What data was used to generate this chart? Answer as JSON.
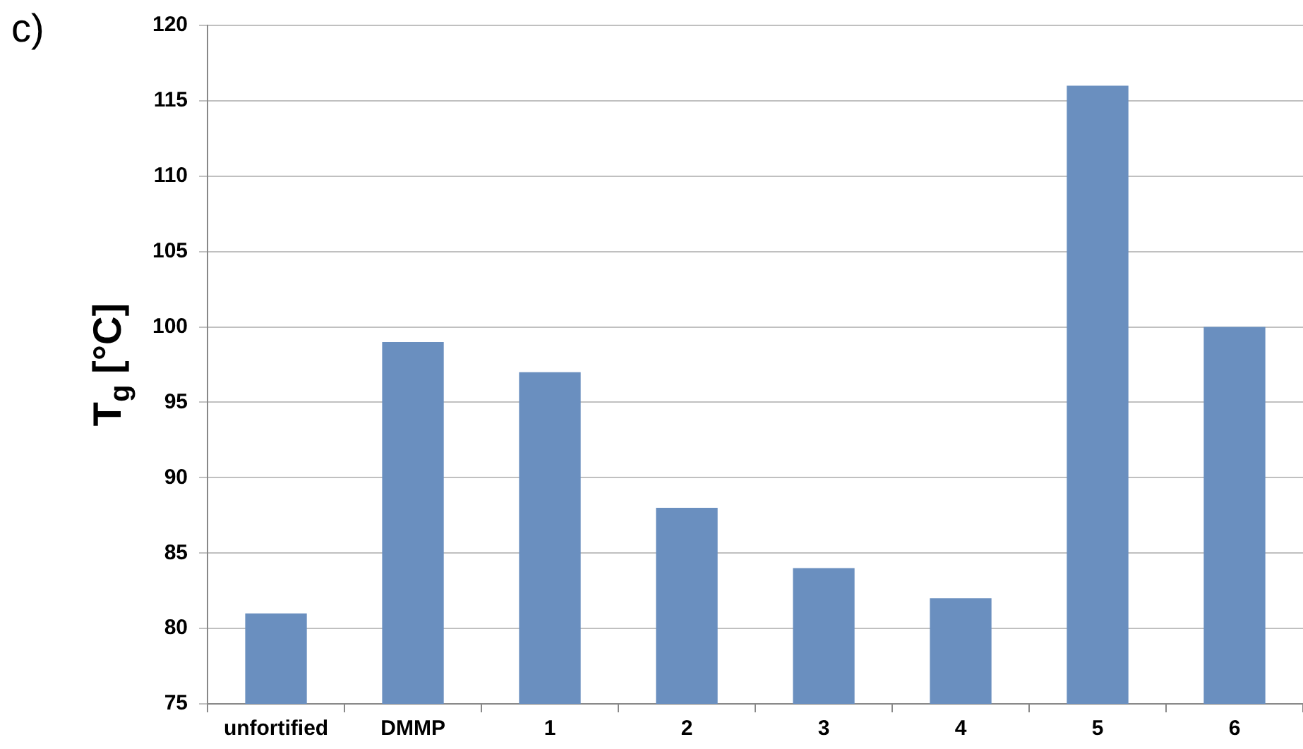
{
  "chart_data": {
    "type": "bar",
    "ylabel": "T$_{g}$ [°C]",
    "annotations": [
      "c)"
    ],
    "categories": [
      "unfortified",
      "DMMP",
      "1",
      "2",
      "3",
      "4",
      "5",
      "6"
    ],
    "values": [
      81,
      99,
      97,
      88,
      84,
      82,
      116,
      100
    ],
    "color": "#6a8fbf",
    "ylim": [
      75,
      120
    ],
    "yticks": [
      75,
      80,
      85,
      90,
      95,
      100,
      105,
      110,
      115,
      120
    ],
    "grid": "y"
  }
}
